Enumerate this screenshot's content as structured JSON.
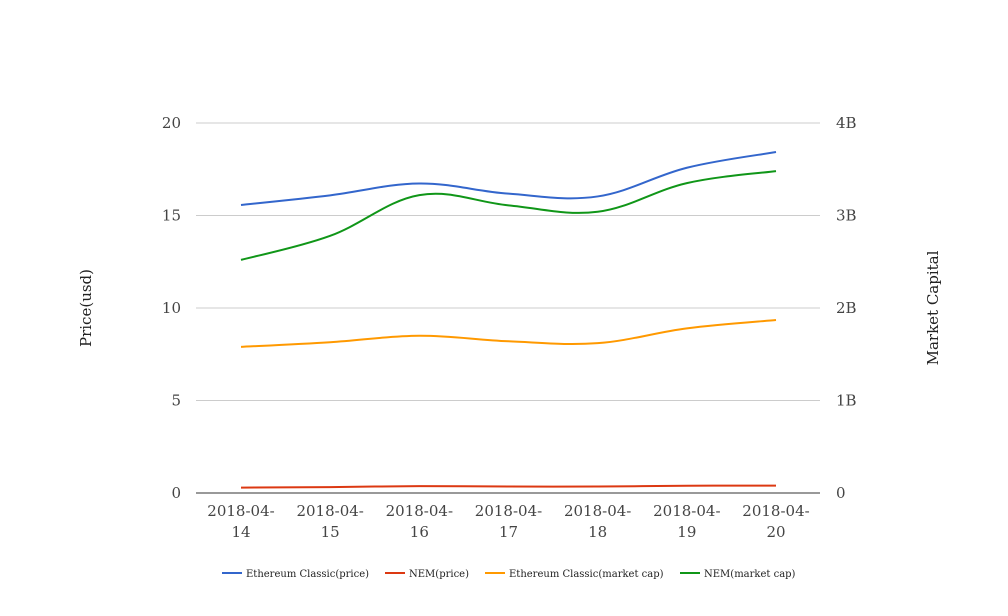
{
  "chart_data": {
    "type": "line",
    "title": "",
    "x": [
      "2018-04-14",
      "2018-04-15",
      "2018-04-16",
      "2018-04-17",
      "2018-04-18",
      "2018-04-19",
      "2018-04-20"
    ],
    "x_tick_lines": [
      [
        "2018-04-",
        "14"
      ],
      [
        "2018-04-",
        "15"
      ],
      [
        "2018-04-",
        "16"
      ],
      [
        "2018-04-",
        "17"
      ],
      [
        "2018-04-",
        "18"
      ],
      [
        "2018-04-",
        "19"
      ],
      [
        "2018-04-",
        "20"
      ]
    ],
    "ylabel_left": "Price(usd)",
    "ylabel_right": "Market Capital",
    "ylim_left": [
      0,
      20
    ],
    "ylim_right": [
      0,
      4000000000
    ],
    "left_ticks": [
      {
        "value": 0,
        "label": "0"
      },
      {
        "value": 5,
        "label": "5"
      },
      {
        "value": 10,
        "label": "10"
      },
      {
        "value": 15,
        "label": "15"
      },
      {
        "value": 20,
        "label": "20"
      }
    ],
    "right_ticks": [
      {
        "value": 0,
        "label": "0"
      },
      {
        "value": 1000000000,
        "label": "1B"
      },
      {
        "value": 2000000000,
        "label": "2B"
      },
      {
        "value": 3000000000,
        "label": "3B"
      },
      {
        "value": 4000000000,
        "label": "4B"
      }
    ],
    "grid": true,
    "legend_position": "bottom",
    "series": [
      {
        "name": "Ethereum Classic(price)",
        "axis": "left",
        "color": "#3366cc",
        "values": [
          15.57,
          16.09,
          16.73,
          16.18,
          16.03,
          17.58,
          18.43
        ]
      },
      {
        "name": "NEM(price)",
        "axis": "left",
        "color": "#dc3912",
        "values": [
          0.29,
          0.32,
          0.37,
          0.35,
          0.35,
          0.39,
          0.4
        ]
      },
      {
        "name": "Ethereum Classic(market cap)",
        "axis": "right",
        "color": "#ff9900",
        "values": [
          1580000000,
          1630000000,
          1700000000,
          1640000000,
          1620000000,
          1780000000,
          1870000000
        ]
      },
      {
        "name": "NEM(market cap)",
        "axis": "right",
        "color": "#109618",
        "values": [
          2520000000,
          2780000000,
          3220000000,
          3110000000,
          3040000000,
          3350000000,
          3480000000
        ]
      }
    ]
  }
}
